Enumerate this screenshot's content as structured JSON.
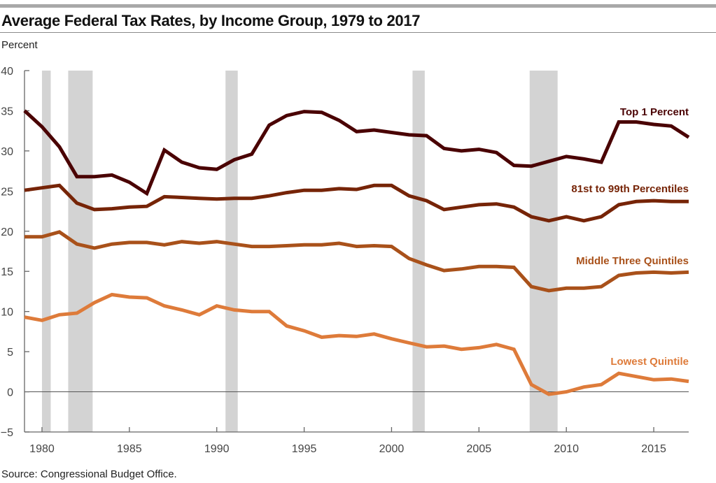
{
  "title": "Average Federal Tax Rates, by Income Group, 1979 to 2017",
  "y_unit_label": "Percent",
  "source": "Source: Congressional Budget Office.",
  "chart_data": {
    "type": "line",
    "title": "Average Federal Tax Rates, by Income Group, 1979 to 2017",
    "xlabel": "",
    "ylabel": "Percent",
    "xlim": [
      1979,
      2017
    ],
    "ylim": [
      -5,
      40
    ],
    "yticks": [
      -5,
      0,
      5,
      10,
      15,
      20,
      25,
      30,
      35,
      40
    ],
    "xticks": [
      1980,
      1985,
      1990,
      1995,
      2000,
      2005,
      2010,
      2015
    ],
    "grid": false,
    "zero_line": true,
    "legend": "inline labels at right end of each line",
    "recession_bands": [
      [
        1980.0,
        1980.5
      ],
      [
        1981.5,
        1982.9
      ],
      [
        1990.5,
        1991.2
      ],
      [
        2001.2,
        2001.9
      ],
      [
        2007.9,
        2009.5
      ]
    ],
    "x": [
      1979,
      1980,
      1981,
      1982,
      1983,
      1984,
      1985,
      1986,
      1987,
      1988,
      1989,
      1990,
      1991,
      1992,
      1993,
      1994,
      1995,
      1996,
      1997,
      1998,
      1999,
      2000,
      2001,
      2002,
      2003,
      2004,
      2005,
      2006,
      2007,
      2008,
      2009,
      2010,
      2011,
      2012,
      2013,
      2014,
      2015,
      2016,
      2017
    ],
    "series": [
      {
        "name": "Top 1 Percent",
        "color": "#4a0203",
        "values": [
          35.0,
          33.0,
          30.5,
          26.8,
          26.8,
          27.0,
          26.1,
          24.7,
          30.1,
          28.6,
          27.9,
          27.7,
          28.9,
          29.6,
          33.2,
          34.4,
          34.9,
          34.8,
          33.8,
          32.4,
          32.6,
          32.3,
          32.0,
          31.9,
          30.3,
          30.0,
          30.2,
          29.8,
          28.2,
          28.1,
          28.7,
          29.3,
          29.0,
          28.6,
          33.6,
          33.6,
          33.3,
          33.1,
          31.7
        ]
      },
      {
        "name": "81st to 99th Percentiles",
        "color": "#762407",
        "values": [
          25.1,
          25.4,
          25.7,
          23.5,
          22.7,
          22.8,
          23.0,
          23.1,
          24.3,
          24.2,
          24.1,
          24.0,
          24.1,
          24.1,
          24.4,
          24.8,
          25.1,
          25.1,
          25.3,
          25.2,
          25.7,
          25.7,
          24.4,
          23.8,
          22.7,
          23.0,
          23.3,
          23.4,
          23.0,
          21.8,
          21.3,
          21.8,
          21.3,
          21.8,
          23.3,
          23.7,
          23.8,
          23.7,
          23.7
        ]
      },
      {
        "name": "Middle Three Quintiles",
        "color": "#a9511a",
        "values": [
          19.3,
          19.3,
          19.9,
          18.4,
          17.9,
          18.4,
          18.6,
          18.6,
          18.3,
          18.7,
          18.5,
          18.7,
          18.4,
          18.1,
          18.1,
          18.2,
          18.3,
          18.3,
          18.5,
          18.1,
          18.2,
          18.1,
          16.6,
          15.8,
          15.1,
          15.3,
          15.6,
          15.6,
          15.5,
          13.1,
          12.6,
          12.9,
          12.9,
          13.1,
          14.5,
          14.8,
          14.9,
          14.8,
          14.9
        ]
      },
      {
        "name": "Lowest Quintile",
        "color": "#de7b3a",
        "values": [
          9.3,
          8.9,
          9.6,
          9.8,
          11.1,
          12.1,
          11.8,
          11.7,
          10.7,
          10.2,
          9.6,
          10.7,
          10.2,
          10.0,
          10.0,
          8.2,
          7.6,
          6.8,
          7.0,
          6.9,
          7.2,
          6.6,
          6.1,
          5.6,
          5.7,
          5.3,
          5.5,
          5.9,
          5.3,
          0.9,
          -0.3,
          0.0,
          0.6,
          0.9,
          2.3,
          1.9,
          1.5,
          1.6,
          1.3
        ]
      }
    ]
  }
}
